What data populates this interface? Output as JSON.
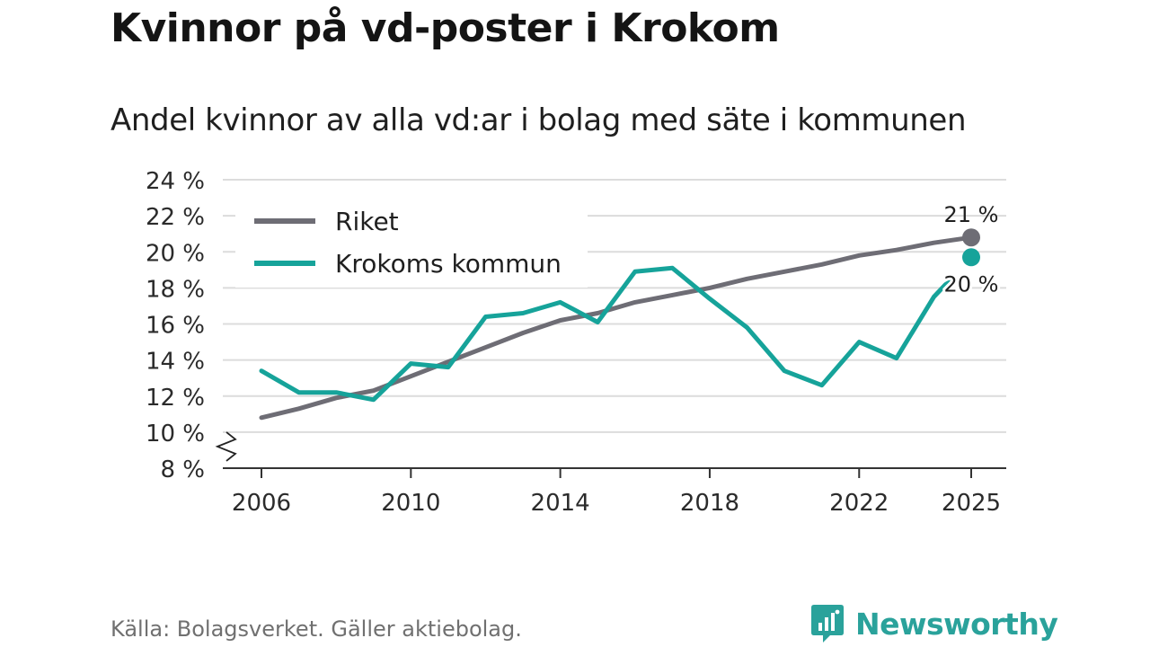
{
  "title": "Kvinnor på vd-poster i Krokom",
  "subtitle": "Andel kvinnor av alla vd:ar i bolag med säte i kommunen",
  "source": "Källa: Bolagsverket. Gäller aktiebolag.",
  "brand": "Newsworthy",
  "colors": {
    "riket": "#6e6d75",
    "krokom": "#16a39a",
    "grid": "#dcdcdc",
    "axis": "#333333"
  },
  "chart_data": {
    "type": "line",
    "title": "Kvinnor på vd-poster i Krokom",
    "subtitle": "Andel kvinnor av alla vd:ar i bolag med säte i kommunen",
    "xlabel": "",
    "ylabel": "",
    "xlim": [
      2005,
      2026
    ],
    "ylim": [
      8,
      24
    ],
    "y_ticks": [
      8,
      10,
      12,
      14,
      16,
      18,
      20,
      22,
      24
    ],
    "y_tick_labels": [
      "8 %",
      "10 %",
      "12 %",
      "14 %",
      "16 %",
      "18 %",
      "20 %",
      "22 %",
      "24 %"
    ],
    "x_ticks": [
      2006,
      2010,
      2014,
      2018,
      2022,
      2025
    ],
    "x_tick_labels": [
      "2006",
      "2010",
      "2014",
      "2018",
      "2022",
      "2025"
    ],
    "axis_break": true,
    "legend_position": "top-left",
    "series": [
      {
        "name": "Riket",
        "color": "#6e6d75",
        "x": [
          2006,
          2007,
          2008,
          2009,
          2010,
          2011,
          2012,
          2013,
          2014,
          2015,
          2016,
          2017,
          2018,
          2019,
          2020,
          2021,
          2022,
          2023,
          2024,
          2025
        ],
        "values": [
          10.8,
          11.3,
          11.9,
          12.3,
          13.1,
          13.9,
          14.7,
          15.5,
          16.2,
          16.6,
          17.2,
          17.6,
          18.0,
          18.5,
          18.9,
          19.3,
          19.8,
          20.1,
          20.5,
          20.8
        ],
        "end_label": "21 %"
      },
      {
        "name": "Krokoms kommun",
        "color": "#16a39a",
        "x": [
          2006,
          2007,
          2008,
          2009,
          2010,
          2011,
          2012,
          2013,
          2014,
          2015,
          2016,
          2017,
          2018,
          2019,
          2020,
          2021,
          2022,
          2023,
          2024,
          2025
        ],
        "values": [
          13.4,
          12.2,
          12.2,
          11.8,
          13.8,
          13.6,
          16.4,
          16.6,
          17.2,
          16.1,
          18.9,
          19.1,
          17.4,
          15.8,
          13.4,
          12.6,
          15.0,
          14.1,
          17.5,
          19.7
        ],
        "end_label": "20 %"
      }
    ]
  }
}
